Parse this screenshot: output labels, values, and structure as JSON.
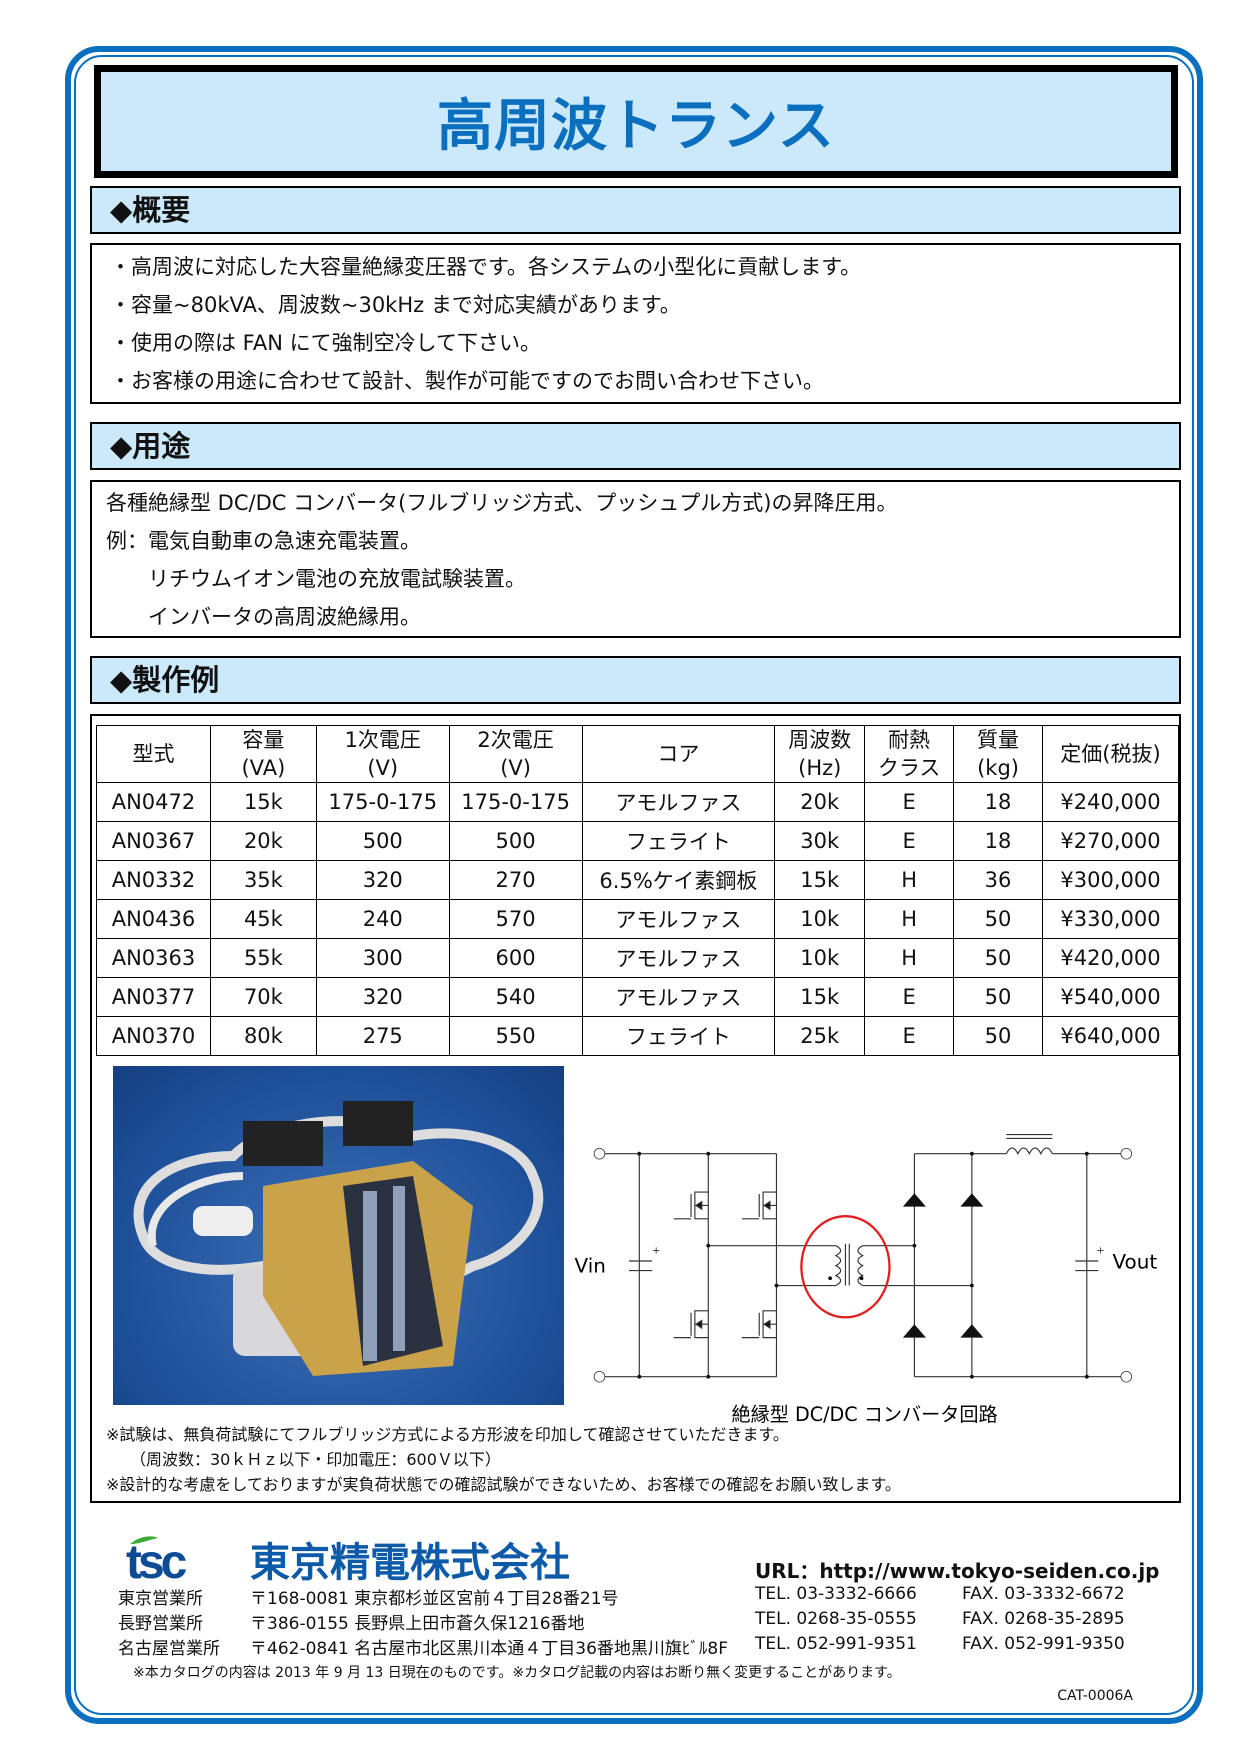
{
  "title": "高周波トランス",
  "overview": {
    "heading": "◆概要",
    "items": [
      "・高周波に対応した大容量絶縁変圧器です。各システムの小型化に貢献します。",
      "・容量~80kVA、周波数~30kHz まで対応実績があります。",
      "・使用の際は FAN にて強制空冷して下さい。",
      "・お客様の用途に合わせて設計、製作が可能ですのでお問い合わせ下さい。"
    ]
  },
  "usage": {
    "heading": "◆用途",
    "items": [
      "各種絶縁型 DC/DC コンバータ(フルブリッジ方式、プッシュプル方式)の昇降圧用。",
      "例：電気自動車の急速充電装置。",
      "　　リチウムイオン電池の充放電試験装置。",
      "　　インバータの高周波絶縁用。"
    ]
  },
  "examples": {
    "heading": "◆製作例",
    "columns": [
      [
        "型式",
        ""
      ],
      [
        "容量",
        "(VA)"
      ],
      [
        "1次電圧",
        "(V)"
      ],
      [
        "2次電圧",
        "(V)"
      ],
      [
        "コア",
        ""
      ],
      [
        "周波数",
        "(Hz)"
      ],
      [
        "耐熱",
        "クラス"
      ],
      [
        "質量",
        "(kg)"
      ],
      [
        "定価(税抜)",
        ""
      ]
    ],
    "rows": [
      [
        "AN0472",
        "15k",
        "175-0-175",
        "175-0-175",
        "アモルファス",
        "20k",
        "E",
        "18",
        "¥240,000"
      ],
      [
        "AN0367",
        "20k",
        "500",
        "500",
        "フェライト",
        "30k",
        "E",
        "18",
        "¥270,000"
      ],
      [
        "AN0332",
        "35k",
        "320",
        "270",
        "6.5%ケイ素鋼板",
        "15k",
        "H",
        "36",
        "¥300,000"
      ],
      [
        "AN0436",
        "45k",
        "240",
        "570",
        "アモルファス",
        "10k",
        "H",
        "50",
        "¥330,000"
      ],
      [
        "AN0363",
        "55k",
        "300",
        "600",
        "アモルファス",
        "10k",
        "H",
        "50",
        "¥420,000"
      ],
      [
        "AN0377",
        "70k",
        "320",
        "540",
        "アモルファス",
        "15k",
        "E",
        "50",
        "¥540,000"
      ],
      [
        "AN0370",
        "80k",
        "275",
        "550",
        "フェライト",
        "25k",
        "E",
        "50",
        "¥640,000"
      ]
    ],
    "circuit": {
      "vin": "Vin",
      "vout": "Vout",
      "caption": "絶縁型 DC/DC コンバータ回路",
      "highlight_color": "#e02020"
    },
    "notes": [
      "※試験は、無負荷試験にてフルブリッジ方式による方形波を印加して確認させていただきます。",
      "（周波数：30ｋＨｚ以下・印加電圧：600Ｖ以下）",
      "※設計的な考慮をしておりますが実負荷状態での確認試験ができないため、お客様での確認をお願い致します。"
    ]
  },
  "footer": {
    "logo": "tsc",
    "company": "東京精電株式会社",
    "url": "URL：http://www.tokyo-seiden.co.jp",
    "offices": [
      {
        "name": "東京営業所",
        "address": "〒168-0081 東京都杉並区宮前４丁目28番21号",
        "tel": "TEL. 03-3332-6666",
        "fax": "FAX. 03-3332-6672"
      },
      {
        "name": "長野営業所",
        "address": "〒386-0155 長野県上田市蒼久保1216番地",
        "tel": "TEL. 0268-35-0555",
        "fax": "FAX. 0268-35-2895"
      },
      {
        "name": "名古屋営業所",
        "address": "〒462-0841 名古屋市北区黒川本通４丁目36番地黒川旗ﾋﾞﾙ8F",
        "tel": "TEL. 052-991-9351",
        "fax": "FAX. 052-991-9350"
      }
    ],
    "disclaimer": "※本カタログの内容は 2013 年 9 月 13 日現在のものです。※カタログ記載の内容はお断り無く変更することがあります。",
    "code": "CAT-0006A"
  },
  "colors": {
    "accent": "#0a6fbf",
    "header_bg": "#cce9fb"
  }
}
